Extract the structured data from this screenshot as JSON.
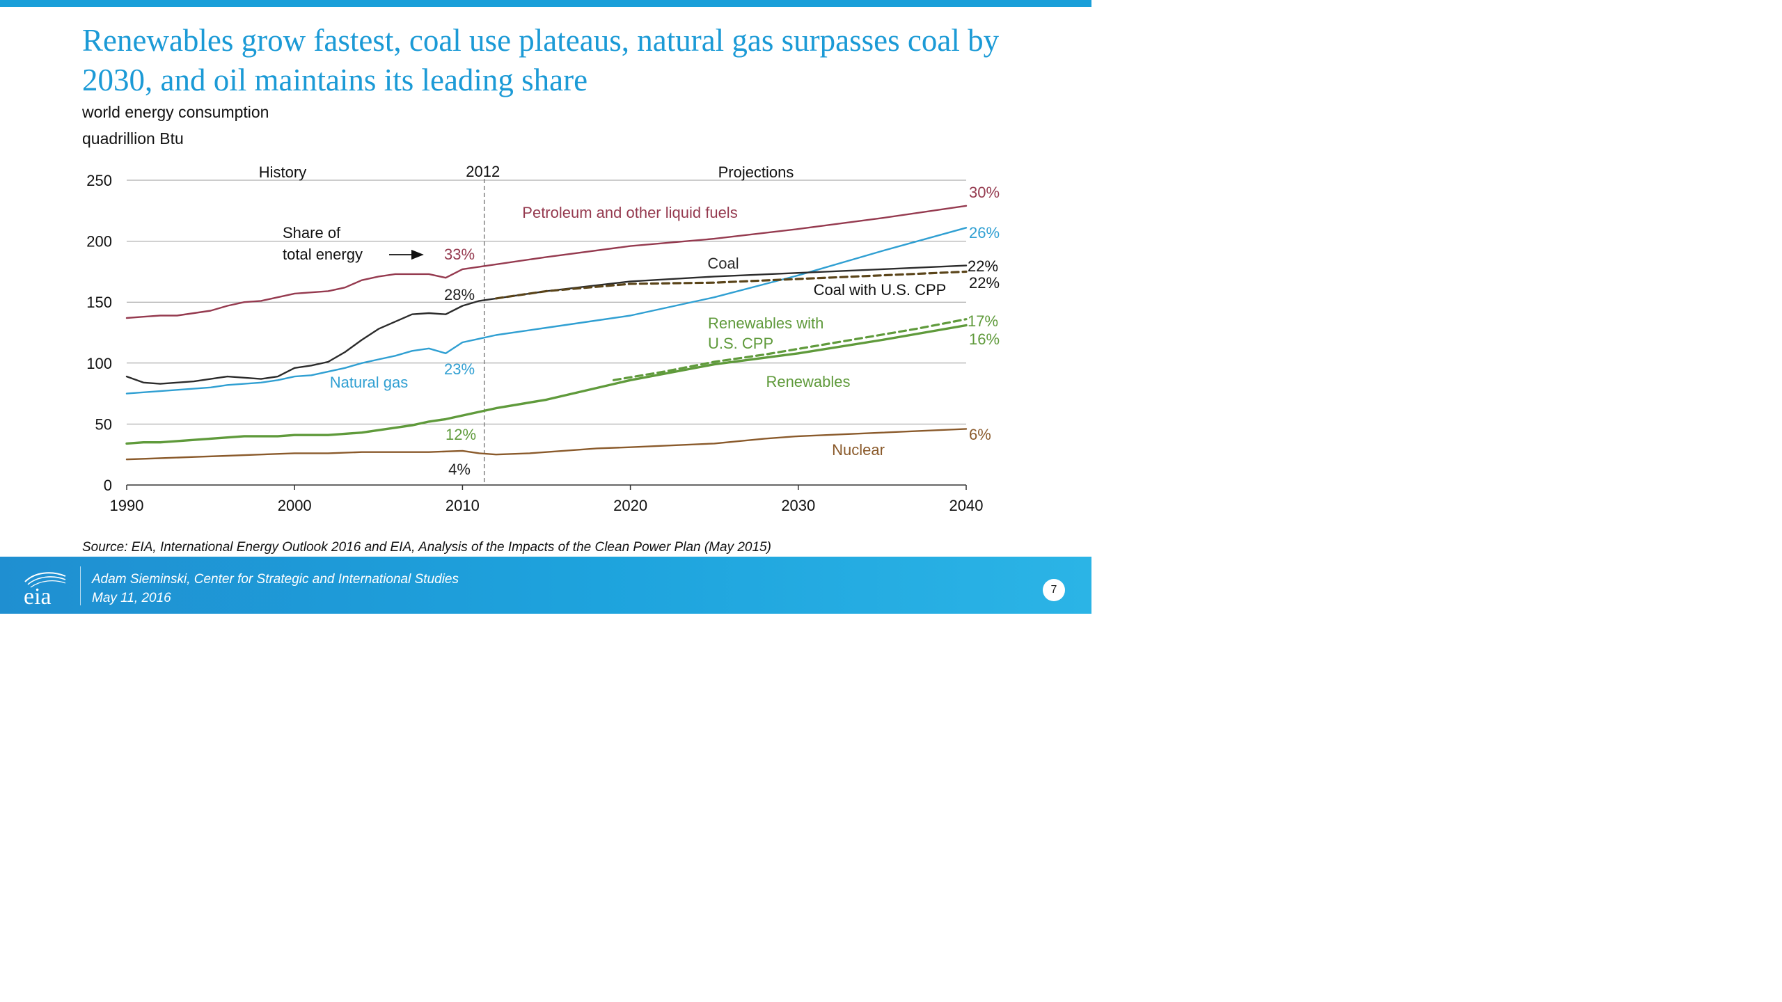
{
  "title": "Renewables grow fastest, coal use plateaus, natural gas surpasses coal by 2030, and oil maintains its leading share",
  "subtitle_lines": [
    "world energy consumption",
    "quadrillion Btu"
  ],
  "source": "Source:  EIA, International Energy Outlook 2016 and EIA, Analysis of the Impacts of the Clean Power Plan (May 2015)",
  "footer": {
    "logo_text": "eia",
    "presenter": "Adam Sieminski, Center for Strategic and International Studies",
    "date": "May 11, 2016",
    "page_number": "7"
  },
  "chart_data": {
    "type": "line",
    "xlim": [
      1990,
      2040
    ],
    "ylim": [
      0,
      250
    ],
    "x_ticks": [
      1990,
      2000,
      2010,
      2020,
      2030,
      2040
    ],
    "y_ticks": [
      0,
      50,
      100,
      150,
      200,
      250
    ],
    "grid": true,
    "divider_year": 2011.3,
    "annotations": {
      "history": "History",
      "divider_label": "2012",
      "projections": "Projections",
      "share_label_line1": "Share of",
      "share_label_line2": "total energy"
    },
    "series": [
      {
        "name": "Petroleum and other liquid fuels",
        "color": "#953a4f",
        "style": "solid",
        "share_2012": "33%",
        "share_2040": "30%",
        "points": [
          [
            1990,
            137
          ],
          [
            1991,
            138
          ],
          [
            1992,
            139
          ],
          [
            1993,
            139
          ],
          [
            1994,
            141
          ],
          [
            1995,
            143
          ],
          [
            1996,
            147
          ],
          [
            1997,
            150
          ],
          [
            1998,
            151
          ],
          [
            1999,
            154
          ],
          [
            2000,
            157
          ],
          [
            2001,
            158
          ],
          [
            2002,
            159
          ],
          [
            2003,
            162
          ],
          [
            2004,
            168
          ],
          [
            2005,
            171
          ],
          [
            2006,
            173
          ],
          [
            2007,
            173
          ],
          [
            2008,
            173
          ],
          [
            2009,
            170
          ],
          [
            2010,
            177
          ],
          [
            2011,
            179
          ],
          [
            2012,
            181
          ],
          [
            2015,
            187
          ],
          [
            2020,
            196
          ],
          [
            2025,
            202
          ],
          [
            2030,
            210
          ],
          [
            2035,
            219
          ],
          [
            2040,
            229
          ]
        ]
      },
      {
        "name": "Natural gas",
        "color": "#2f9fd2",
        "style": "solid",
        "share_2012": "23%",
        "share_2040": "26%",
        "points": [
          [
            1990,
            75
          ],
          [
            1991,
            76
          ],
          [
            1992,
            77
          ],
          [
            1993,
            78
          ],
          [
            1994,
            79
          ],
          [
            1995,
            80
          ],
          [
            1996,
            82
          ],
          [
            1997,
            83
          ],
          [
            1998,
            84
          ],
          [
            1999,
            86
          ],
          [
            2000,
            89
          ],
          [
            2001,
            90
          ],
          [
            2002,
            93
          ],
          [
            2003,
            96
          ],
          [
            2004,
            100
          ],
          [
            2005,
            103
          ],
          [
            2006,
            106
          ],
          [
            2007,
            110
          ],
          [
            2008,
            112
          ],
          [
            2009,
            108
          ],
          [
            2010,
            117
          ],
          [
            2011,
            120
          ],
          [
            2012,
            123
          ],
          [
            2015,
            129
          ],
          [
            2020,
            139
          ],
          [
            2025,
            154
          ],
          [
            2030,
            172
          ],
          [
            2035,
            192
          ],
          [
            2040,
            211
          ]
        ]
      },
      {
        "name": "Coal",
        "color": "#2b2b2b",
        "style": "solid",
        "share_2012": "28%",
        "share_2040": "22%",
        "points": [
          [
            1990,
            89
          ],
          [
            1991,
            84
          ],
          [
            1992,
            83
          ],
          [
            1993,
            84
          ],
          [
            1994,
            85
          ],
          [
            1995,
            87
          ],
          [
            1996,
            89
          ],
          [
            1997,
            88
          ],
          [
            1998,
            87
          ],
          [
            1999,
            89
          ],
          [
            2000,
            96
          ],
          [
            2001,
            98
          ],
          [
            2002,
            101
          ],
          [
            2003,
            109
          ],
          [
            2004,
            119
          ],
          [
            2005,
            128
          ],
          [
            2006,
            134
          ],
          [
            2007,
            140
          ],
          [
            2008,
            141
          ],
          [
            2009,
            140
          ],
          [
            2010,
            147
          ],
          [
            2011,
            151
          ],
          [
            2012,
            153
          ],
          [
            2015,
            159
          ],
          [
            2020,
            167
          ],
          [
            2025,
            171
          ],
          [
            2030,
            174
          ],
          [
            2035,
            177
          ],
          [
            2040,
            180
          ]
        ]
      },
      {
        "name": "Coal with U.S. CPP",
        "color": "#5a4419",
        "style": "dashed",
        "share_2040": "22%",
        "points": [
          [
            2012,
            153
          ],
          [
            2015,
            159
          ],
          [
            2020,
            165
          ],
          [
            2025,
            166
          ],
          [
            2030,
            169
          ],
          [
            2035,
            172
          ],
          [
            2040,
            175
          ]
        ]
      },
      {
        "name": "Renewables",
        "color": "#5f9a3b",
        "style": "solid",
        "share_2012": "12%",
        "share_2040": "16%",
        "points": [
          [
            1990,
            34
          ],
          [
            1991,
            35
          ],
          [
            1992,
            35
          ],
          [
            1993,
            36
          ],
          [
            1994,
            37
          ],
          [
            1995,
            38
          ],
          [
            1996,
            39
          ],
          [
            1997,
            40
          ],
          [
            1998,
            40
          ],
          [
            1999,
            40
          ],
          [
            2000,
            41
          ],
          [
            2001,
            41
          ],
          [
            2002,
            41
          ],
          [
            2003,
            42
          ],
          [
            2004,
            43
          ],
          [
            2005,
            45
          ],
          [
            2006,
            47
          ],
          [
            2007,
            49
          ],
          [
            2008,
            52
          ],
          [
            2009,
            54
          ],
          [
            2010,
            57
          ],
          [
            2011,
            60
          ],
          [
            2012,
            63
          ],
          [
            2015,
            70
          ],
          [
            2020,
            86
          ],
          [
            2025,
            99
          ],
          [
            2030,
            108
          ],
          [
            2035,
            119
          ],
          [
            2040,
            131
          ]
        ]
      },
      {
        "name": "Renewables with U.S. CPP",
        "color": "#5f9a3b",
        "style": "dashed",
        "share_2040": "17%",
        "points": [
          [
            2019,
            86
          ],
          [
            2022,
            93
          ],
          [
            2025,
            101
          ],
          [
            2028,
            107
          ],
          [
            2031,
            114
          ],
          [
            2034,
            121
          ],
          [
            2037,
            128
          ],
          [
            2040,
            136
          ]
        ]
      },
      {
        "name": "Nuclear",
        "color": "#8a5a2b",
        "style": "solid",
        "share_2012": "4%",
        "share_2040": "6%",
        "points": [
          [
            1990,
            21
          ],
          [
            1992,
            22
          ],
          [
            1994,
            23
          ],
          [
            1996,
            24
          ],
          [
            1998,
            25
          ],
          [
            2000,
            26
          ],
          [
            2002,
            26
          ],
          [
            2004,
            27
          ],
          [
            2006,
            27
          ],
          [
            2008,
            27
          ],
          [
            2010,
            28
          ],
          [
            2011,
            26
          ],
          [
            2012,
            25
          ],
          [
            2014,
            26
          ],
          [
            2016,
            28
          ],
          [
            2018,
            30
          ],
          [
            2020,
            31
          ],
          [
            2025,
            34
          ],
          [
            2028,
            38
          ],
          [
            2030,
            40
          ],
          [
            2035,
            43
          ],
          [
            2040,
            46
          ]
        ]
      }
    ]
  }
}
